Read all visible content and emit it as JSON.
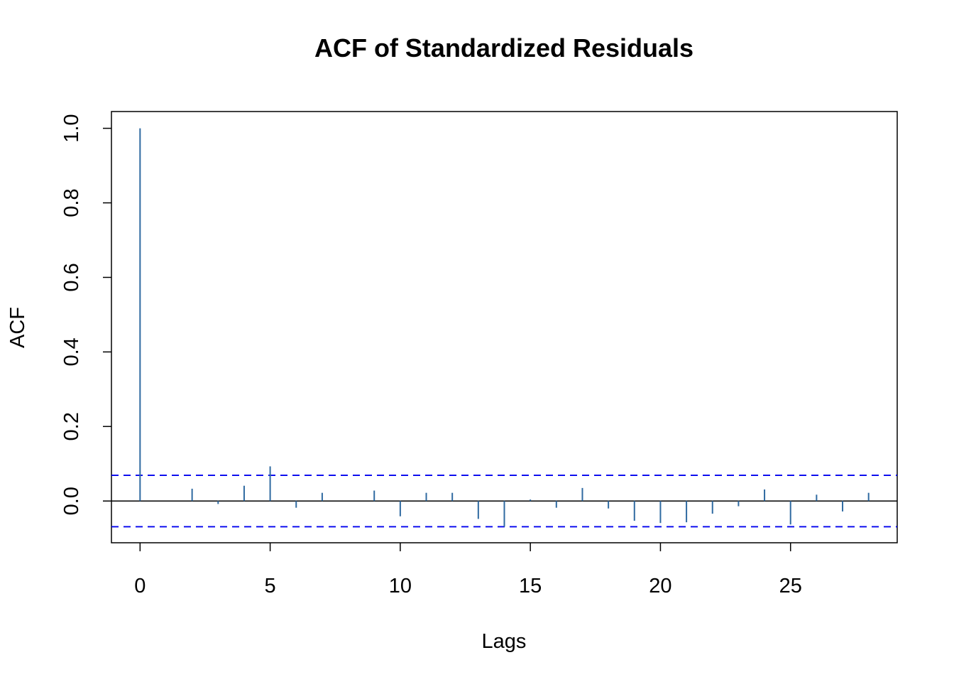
{
  "chart_data": {
    "type": "bar",
    "title": "ACF of Standardized Residuals",
    "xlabel": "Lags",
    "ylabel": "ACF",
    "xlim": [
      -1.1,
      29.1
    ],
    "ylim": [
      -0.112,
      1.045
    ],
    "x_ticks": [
      0,
      5,
      10,
      15,
      20,
      25
    ],
    "x_tick_labels": [
      "0",
      "5",
      "10",
      "15",
      "20",
      "25"
    ],
    "y_ticks": [
      0.0,
      0.2,
      0.4,
      0.6,
      0.8,
      1.0
    ],
    "y_tick_labels": [
      "0.0",
      "0.2",
      "0.4",
      "0.6",
      "0.8",
      "1.0"
    ],
    "lags": [
      0,
      1,
      2,
      3,
      4,
      5,
      6,
      7,
      8,
      9,
      10,
      11,
      12,
      13,
      14,
      15,
      16,
      17,
      18,
      19,
      20,
      21,
      22,
      23,
      24,
      25,
      26,
      27,
      28
    ],
    "values": [
      1.0,
      0.0,
      0.033,
      -0.008,
      0.041,
      0.093,
      -0.018,
      0.022,
      0.0,
      0.028,
      -0.041,
      0.022,
      0.022,
      -0.048,
      -0.069,
      0.004,
      -0.018,
      0.035,
      -0.02,
      -0.053,
      -0.059,
      -0.057,
      -0.034,
      -0.014,
      0.031,
      -0.063,
      0.017,
      -0.028,
      0.022
    ],
    "confidence_bound": 0.069,
    "bar_color": "#2f6aa1",
    "bound_color": "#0000ee",
    "grid": false
  }
}
